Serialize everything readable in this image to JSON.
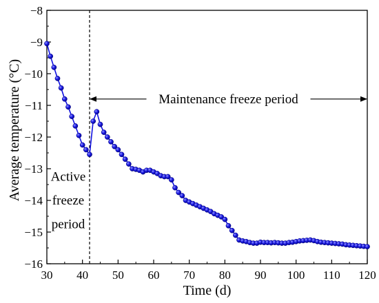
{
  "chart_data": {
    "type": "line",
    "xlabel": "Time (d)",
    "ylabel": "Average temperature (°C)",
    "xlim": [
      30,
      120
    ],
    "ylim": [
      -16,
      -8
    ],
    "xticks": [
      30,
      40,
      50,
      60,
      70,
      80,
      90,
      100,
      110,
      120
    ],
    "yticks": [
      -16,
      -15,
      -14,
      -13,
      -12,
      -11,
      -10,
      -9,
      -8
    ],
    "xtick_labels": [
      "30",
      "40",
      "50",
      "60",
      "70",
      "80",
      "90",
      "100",
      "110",
      "120"
    ],
    "ytick_labels": [
      "−16",
      "−15",
      "−14",
      "−13",
      "−12",
      "−11",
      "−10",
      "−9",
      "−8"
    ],
    "grid": false,
    "series": [
      {
        "marker": "circle",
        "color": "#1010e0",
        "x": [
          30,
          31,
          32,
          33,
          34,
          35,
          36,
          37,
          38,
          39,
          40,
          41,
          42,
          43,
          44,
          45,
          46,
          47,
          48,
          49,
          50,
          51,
          52,
          53,
          54,
          55,
          56,
          57,
          58,
          59,
          60,
          61,
          62,
          63,
          64,
          65,
          66,
          67,
          68,
          69,
          70,
          71,
          72,
          73,
          74,
          75,
          76,
          77,
          78,
          79,
          80,
          81,
          82,
          83,
          84,
          85,
          86,
          87,
          88,
          89,
          90,
          91,
          92,
          93,
          94,
          95,
          96,
          97,
          98,
          99,
          100,
          101,
          102,
          103,
          104,
          105,
          106,
          107,
          108,
          109,
          110,
          111,
          112,
          113,
          114,
          115,
          116,
          117,
          118,
          119,
          120
        ],
        "y": [
          -9.05,
          -9.45,
          -9.8,
          -10.15,
          -10.45,
          -10.8,
          -11.05,
          -11.35,
          -11.65,
          -11.95,
          -12.25,
          -12.4,
          -12.55,
          -11.5,
          -11.2,
          -11.6,
          -11.85,
          -12.0,
          -12.15,
          -12.3,
          -12.4,
          -12.55,
          -12.7,
          -12.85,
          -13.0,
          -13.02,
          -13.05,
          -13.1,
          -13.05,
          -13.05,
          -13.1,
          -13.15,
          -13.22,
          -13.25,
          -13.25,
          -13.35,
          -13.6,
          -13.75,
          -13.85,
          -14.0,
          -14.05,
          -14.1,
          -14.15,
          -14.2,
          -14.25,
          -14.3,
          -14.35,
          -14.42,
          -14.47,
          -14.52,
          -14.6,
          -14.8,
          -14.95,
          -15.1,
          -15.25,
          -15.28,
          -15.3,
          -15.33,
          -15.35,
          -15.35,
          -15.32,
          -15.33,
          -15.33,
          -15.34,
          -15.33,
          -15.34,
          -15.35,
          -15.35,
          -15.33,
          -15.32,
          -15.3,
          -15.28,
          -15.27,
          -15.26,
          -15.25,
          -15.27,
          -15.3,
          -15.32,
          -15.33,
          -15.34,
          -15.35,
          -15.36,
          -15.37,
          -15.38,
          -15.4,
          -15.41,
          -15.42,
          -15.43,
          -15.44,
          -15.45,
          -15.46
        ]
      }
    ],
    "annotations": {
      "divider_x": 42,
      "maintenance_label": "Maintenance freeze period",
      "maintenance_range": [
        42,
        120
      ],
      "maintenance_y": -10.8,
      "active_label_line1": "Active",
      "active_label_line2": "freeze",
      "active_label_line3": "period"
    }
  }
}
